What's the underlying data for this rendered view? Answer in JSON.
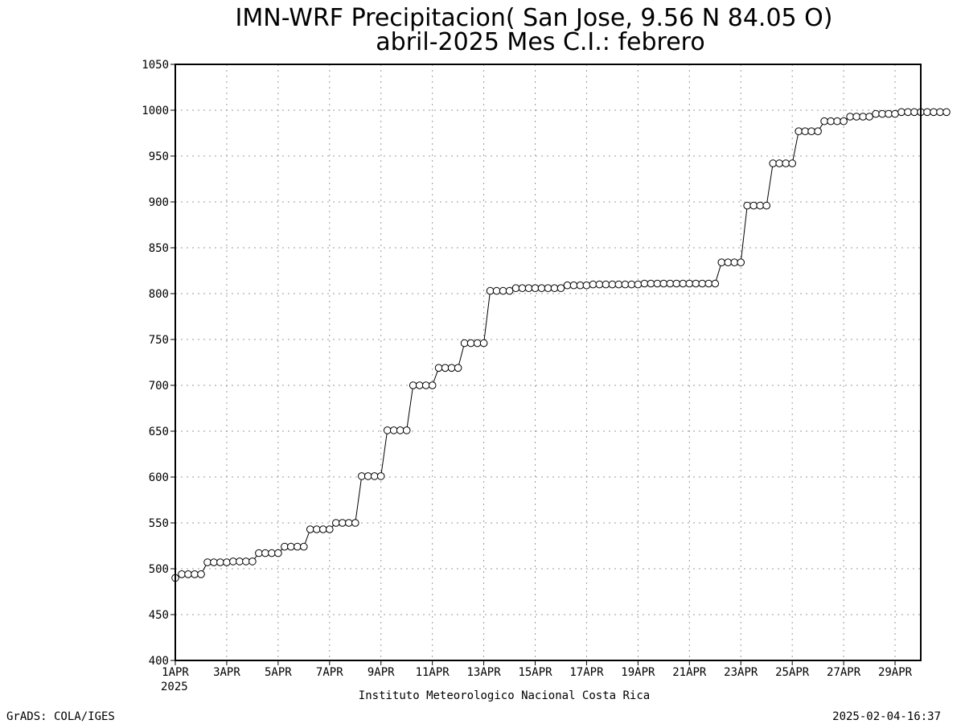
{
  "title_line1": "IMN-WRF  Precipitacion( San Jose, 9.56  N 84.05  O)",
  "title_line2": "abril-2025 Mes C.I.: febrero",
  "x_year_label": "2025",
  "footer_center": "Instituto Meteorologico Nacional Costa Rica",
  "footer_left": "GrADS: COLA/IGES",
  "footer_right": "2025-02-04-16:37",
  "chart_data": {
    "type": "line",
    "title": "IMN-WRF  Precipitacion( San Jose, 9.56  N 84.05  O)",
    "subtitle": "abril-2025 Mes C.I.: febrero",
    "xlabel": "",
    "ylabel": "",
    "ylim": [
      400,
      1050
    ],
    "yticks": [
      400,
      450,
      500,
      550,
      600,
      650,
      700,
      750,
      800,
      850,
      900,
      950,
      1000,
      1050
    ],
    "xlim": [
      "2025-04-01 00:00",
      "2025-04-30 00:00"
    ],
    "xtick_labels": [
      "1APR",
      "3APR",
      "5APR",
      "7APR",
      "9APR",
      "11APR",
      "13APR",
      "15APR",
      "17APR",
      "19APR",
      "21APR",
      "23APR",
      "25APR",
      "27APR",
      "29APR"
    ],
    "grid": true,
    "marker": "open-circle",
    "sample_interval_hours": 6,
    "series": [
      {
        "values": [
          490,
          494,
          494,
          494,
          494,
          507,
          507,
          507,
          507,
          508,
          508,
          508,
          508,
          517,
          517,
          517,
          517,
          524,
          524,
          524,
          524,
          543,
          543,
          543,
          543,
          550,
          550,
          550,
          550,
          601,
          601,
          601,
          601,
          651,
          651,
          651,
          651,
          700,
          700,
          700,
          700,
          719,
          719,
          719,
          719,
          746,
          746,
          746,
          746,
          803,
          803,
          803,
          803,
          806,
          806,
          806,
          806,
          806,
          806,
          806,
          806,
          809,
          809,
          809,
          809,
          810,
          810,
          810,
          810,
          810,
          810,
          810,
          810,
          811,
          811,
          811,
          811,
          811,
          811,
          811,
          811,
          811,
          811,
          811,
          811,
          834,
          834,
          834,
          834,
          896,
          896,
          896,
          896,
          942,
          942,
          942,
          942,
          977,
          977,
          977,
          977,
          988,
          988,
          988,
          988,
          993,
          993,
          993,
          993,
          996,
          996,
          996,
          996,
          998,
          998,
          998,
          998,
          998,
          998,
          998,
          998
        ]
      }
    ]
  }
}
